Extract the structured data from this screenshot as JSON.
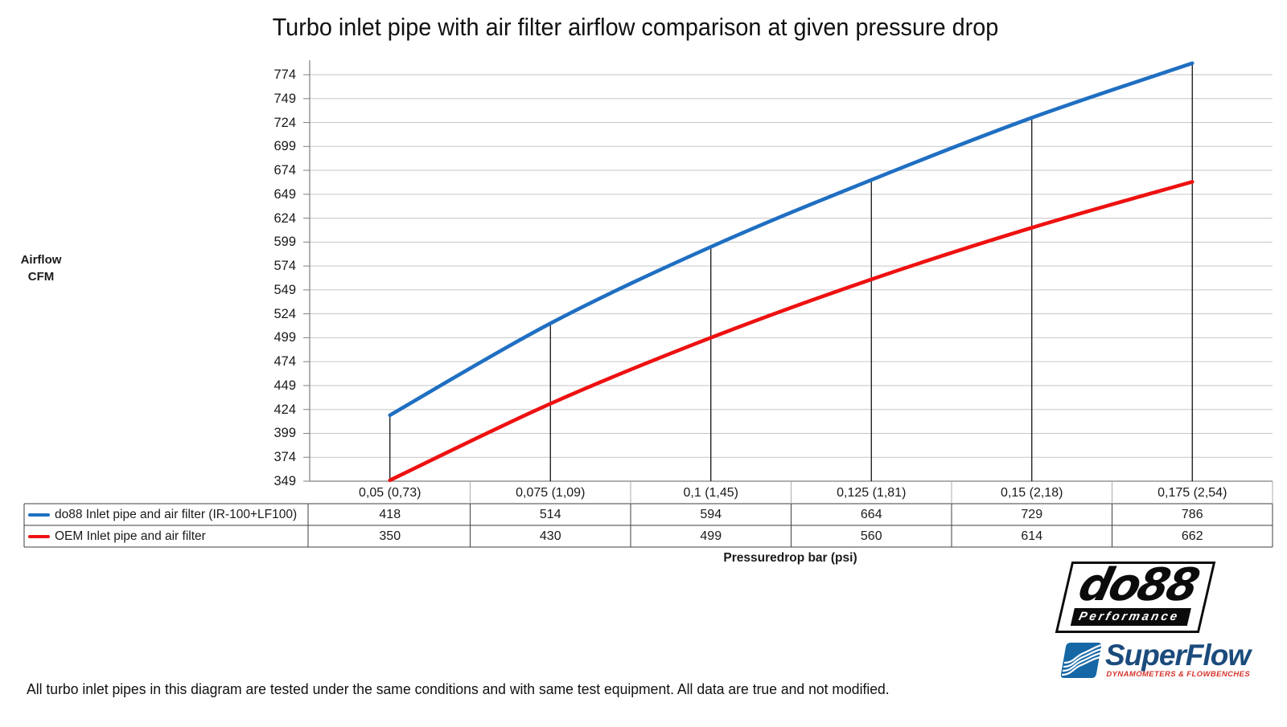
{
  "title": "Turbo inlet pipe with air filter airflow comparison at given pressure drop",
  "y_axis_title_line1": "Airflow",
  "y_axis_title_line2": "CFM",
  "x_axis_title": "Pressuredrop bar (psi)",
  "footer": "All turbo inlet pipes in this diagram are tested under the same conditions and with same test equipment. All data are true and not modified.",
  "chart_data": {
    "type": "line",
    "title": "Turbo inlet pipe with air filter airflow comparison at given pressure drop",
    "xlabel": "Pressuredrop bar (psi)",
    "ylabel": "Airflow CFM",
    "categories": [
      "0,05 (0,73)",
      "0,075 (1,09)",
      "0,1 (1,45)",
      "0,125 (1,81)",
      "0,15 (2,18)",
      "0,175 (2,54)"
    ],
    "series": [
      {
        "name": "do88 Inlet pipe and air filter (IR-100+LF100)",
        "color": "#1f6fc2",
        "values": [
          418,
          514,
          594,
          664,
          729,
          786
        ]
      },
      {
        "name": "OEM Inlet pipe and air filter",
        "color": "#ee1111",
        "values": [
          350,
          430,
          499,
          560,
          614,
          662
        ]
      }
    ],
    "y_axis": {
      "min": 349,
      "max": 774,
      "step": 25,
      "ticks": [
        349,
        374,
        399,
        424,
        449,
        474,
        499,
        524,
        549,
        574,
        599,
        624,
        649,
        674,
        699,
        724,
        749,
        774
      ]
    },
    "grid": true,
    "smooth_lines": true,
    "drop_lines": true,
    "legend_position": "table-left",
    "data_table_shown": true
  },
  "colors": {
    "gridline": "#c6c6c6",
    "axis": "#7f7f7f",
    "drop_line": "#000000",
    "table_border": "#3f3f3f",
    "label_row_border": "#ababab"
  },
  "logos": {
    "do88": {
      "text": "do88",
      "subtext": "Performance"
    },
    "superflow": {
      "text": "SuperFlow",
      "subtext": "DYNAMOMETERS & FLOWBENCHES"
    }
  }
}
